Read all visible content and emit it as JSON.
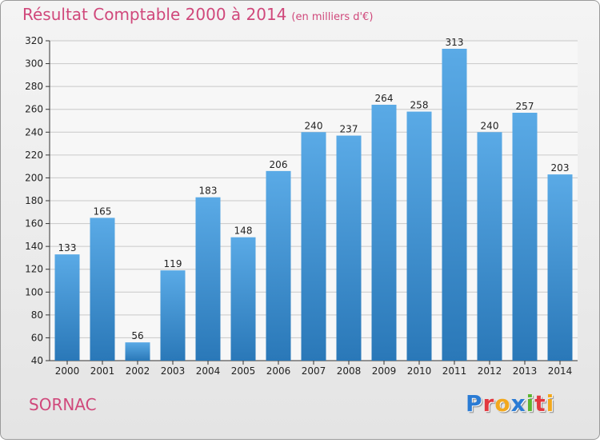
{
  "header": {
    "title": "Résultat Comptable 2000 à 2014",
    "subtitle": "(en milliers d'€)"
  },
  "footer": {
    "place": "SORNAC",
    "logo_letters": [
      "P",
      "r",
      "o",
      "x",
      "i",
      "t",
      "i"
    ],
    "logo_colors": [
      "#2a7bd4",
      "#e2383f",
      "#f2a81d",
      "#2a7bd4",
      "#5cb531",
      "#e2383f",
      "#f2a81d"
    ]
  },
  "colors": {
    "title": "#d0487b",
    "bar_top": "#5aaae6",
    "bar_bottom": "#2a78b8",
    "grid": "#c8c8c8",
    "axis": "#333333"
  },
  "chart_data": {
    "type": "bar",
    "categories": [
      "2000",
      "2001",
      "2002",
      "2003",
      "2004",
      "2005",
      "2006",
      "2007",
      "2008",
      "2009",
      "2010",
      "2011",
      "2012",
      "2013",
      "2014"
    ],
    "values": [
      133,
      165,
      56,
      119,
      183,
      148,
      206,
      240,
      237,
      264,
      258,
      313,
      240,
      257,
      203
    ],
    "title": "Résultat Comptable 2000 à 2014",
    "subtitle": "(en milliers d'€)",
    "ylim": [
      40,
      320
    ],
    "yticks": [
      40,
      60,
      80,
      100,
      120,
      140,
      160,
      180,
      200,
      220,
      240,
      260,
      280,
      300,
      320
    ],
    "grid": true,
    "data_labels": true
  }
}
